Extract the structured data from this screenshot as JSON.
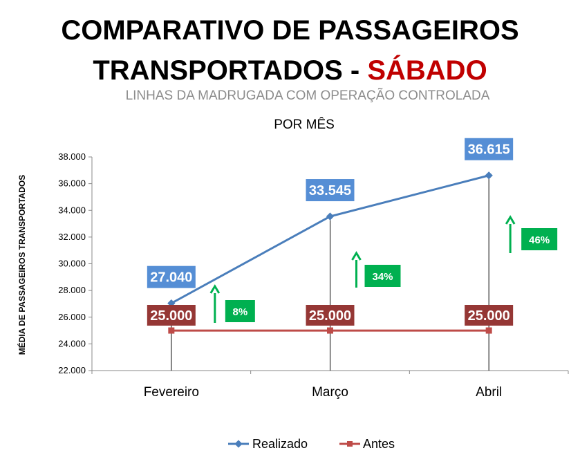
{
  "title": {
    "line1": "COMPARATIVO DE PASSAGEIROS",
    "line2_prefix": "TRANSPORTADOS - ",
    "line2_highlight": "SÁBADO",
    "subtitle": "LINHAS DA MADRUGADA COM OPERAÇÃO CONTROLADA",
    "subtitle2": "POR MÊS"
  },
  "colors": {
    "realizado": "#4a7ebb",
    "antes": "#be4b48",
    "realizado_label_bg": "#558ed5",
    "antes_label_bg": "#953735",
    "growth": "#00b050"
  },
  "chart_data": {
    "type": "line",
    "categories": [
      "Fevereiro",
      "Março",
      "Abril"
    ],
    "ylabel": "MÉDIA DE PASSAGEIROS TRANSPORTADOS",
    "ylim": [
      22000,
      38000
    ],
    "yticks": [
      "22.000",
      "24.000",
      "26.000",
      "28.000",
      "30.000",
      "32.000",
      "34.000",
      "36.000",
      "38.000"
    ],
    "series": [
      {
        "name": "Realizado",
        "values": [
          27040,
          33545,
          36615
        ],
        "labels": [
          "27.040",
          "33.545",
          "36.615"
        ]
      },
      {
        "name": "Antes",
        "values": [
          25000,
          25000,
          25000
        ],
        "labels": [
          "25.000",
          "25.000",
          "25.000"
        ]
      }
    ],
    "growth": [
      "8%",
      "34%",
      "46%"
    ],
    "legend": "bottom",
    "grid": false
  }
}
